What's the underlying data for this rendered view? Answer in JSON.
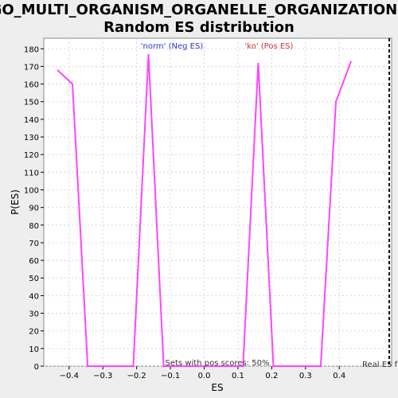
{
  "chart_data": {
    "type": "line",
    "title_line1": "GO_MULTI_ORGANISM_ORGANELLE_ORGANIZATION:",
    "title_line2": "Random ES distribution",
    "xlabel": "ES",
    "ylabel": "P(ES)",
    "xlim": [
      -0.475,
      0.555
    ],
    "ylim": [
      0,
      186
    ],
    "x_ticks": [
      -0.4,
      -0.3,
      -0.2,
      -0.1,
      0.0,
      0.1,
      0.2,
      0.3,
      0.4
    ],
    "x_tick_labels": [
      "−0.4",
      "−0.3",
      "−0.2",
      "−0.1",
      "0.0",
      "0.1",
      "0.2",
      "0.3",
      "0.4"
    ],
    "y_ticks": [
      0,
      10,
      20,
      30,
      40,
      50,
      60,
      70,
      80,
      90,
      100,
      110,
      120,
      130,
      140,
      150,
      160,
      170,
      180
    ],
    "grid": true,
    "series": [
      {
        "color": "#ff44ff",
        "x": [
          -0.435,
          -0.39,
          -0.345,
          -0.3,
          -0.255,
          -0.21,
          -0.165,
          -0.12,
          -0.075,
          -0.03,
          0.015,
          0.06,
          0.115,
          0.16,
          0.205,
          0.25,
          0.3,
          0.345,
          0.39,
          0.435
        ],
        "y": [
          168,
          160,
          0,
          0,
          0,
          0,
          177,
          0,
          0,
          0,
          0,
          0,
          0,
          172,
          0,
          0,
          0,
          0,
          150,
          173
        ]
      }
    ],
    "real_es": 0.548,
    "annotations": {
      "neg": "'norm' (Neg ES)",
      "pos": "'ko' (Pos ES)",
      "sets_pos": "Sets with pos scores: 50%",
      "real_es": "Real ES f"
    },
    "colors": {
      "neg_label": "#3333cc",
      "pos_label": "#cc3333",
      "line": "#ff44ff",
      "grid": "#d8d8d8",
      "real_es_line": "#000000"
    }
  }
}
